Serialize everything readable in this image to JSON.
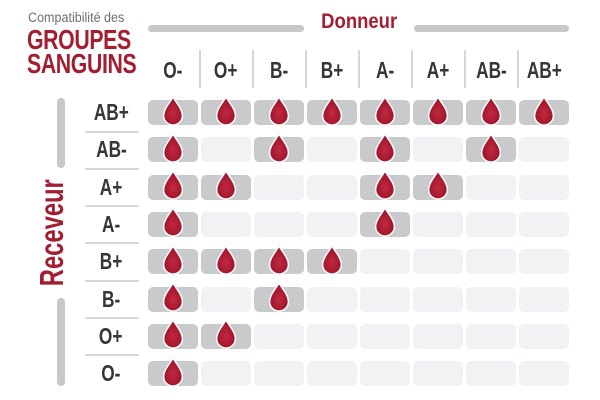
{
  "title": {
    "line1": "Compatibilité des",
    "line2": "GROUPES",
    "line3": "SANGUINS"
  },
  "chart_data": {
    "type": "heatmap",
    "title": "Compatibilité des groupes sanguins",
    "x_label": "Donneur",
    "y_label": "Receveur",
    "columns": [
      "O-",
      "O+",
      "B-",
      "B+",
      "A-",
      "A+",
      "AB-",
      "AB+"
    ],
    "rows": [
      "AB+",
      "AB-",
      "A+",
      "A-",
      "B+",
      "B-",
      "O+",
      "O-"
    ],
    "legend": "1 = compatible (goutte de sang affichée), 0 = incompatible (case vide)",
    "compatibility": [
      [
        1,
        1,
        1,
        1,
        1,
        1,
        1,
        1
      ],
      [
        1,
        0,
        1,
        0,
        1,
        0,
        1,
        0
      ],
      [
        1,
        1,
        0,
        0,
        1,
        1,
        0,
        0
      ],
      [
        1,
        0,
        0,
        0,
        1,
        0,
        0,
        0
      ],
      [
        1,
        1,
        1,
        1,
        0,
        0,
        0,
        0
      ],
      [
        1,
        0,
        1,
        0,
        0,
        0,
        0,
        0
      ],
      [
        1,
        1,
        0,
        0,
        0,
        0,
        0,
        0
      ],
      [
        1,
        0,
        0,
        0,
        0,
        0,
        0,
        0
      ]
    ]
  },
  "icons": {
    "compatible_marker": "blood-drop-icon"
  },
  "colors": {
    "accent_red": "#A41E31",
    "drop_red_light": "#C02A42",
    "drop_red_mid": "#A5182E",
    "drop_red_dark": "#951124",
    "cell_filled": "#C8CACC",
    "cell_empty": "#F1F2F3",
    "bar_gray": "#C6C8CA",
    "separator": "#D5D6D8",
    "subtitle_gray": "#6D6E71",
    "label_dark": "#35363A"
  }
}
